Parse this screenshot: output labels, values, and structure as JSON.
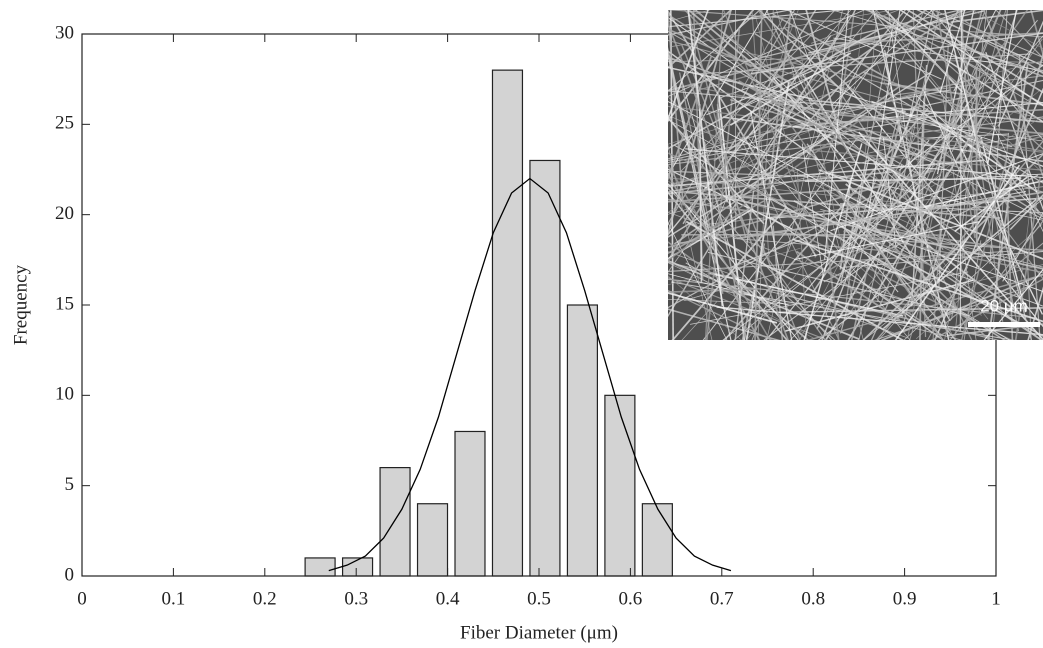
{
  "chart_data": {
    "type": "histogram",
    "x_label": "Fiber Diameter (μm)",
    "y_label": "Frequency",
    "bins": [
      0.24,
      0.281,
      0.322,
      0.363,
      0.404,
      0.445,
      0.486,
      0.527,
      0.568,
      0.609,
      0.65
    ],
    "values": [
      1,
      1,
      6,
      4,
      8,
      28,
      23,
      15,
      10,
      4
    ],
    "color": "#d3d3d3",
    "edge_color": "#222222",
    "fit": {
      "x": [
        0.27,
        0.29,
        0.31,
        0.33,
        0.35,
        0.37,
        0.39,
        0.41,
        0.43,
        0.45,
        0.47,
        0.49,
        0.51,
        0.53,
        0.55,
        0.57,
        0.59,
        0.61,
        0.63,
        0.65,
        0.67,
        0.69,
        0.71
      ],
      "values": [
        0.3,
        0.6,
        1.1,
        2.1,
        3.7,
        5.9,
        8.8,
        12.3,
        15.8,
        19.0,
        21.2,
        22,
        21.2,
        19.0,
        15.8,
        12.3,
        8.8,
        5.9,
        3.7,
        2.1,
        1.1,
        0.6,
        0.3
      ],
      "color": "#000000"
    },
    "xlim": [
      0,
      1
    ],
    "xticks": [
      0,
      0.1,
      0.2,
      0.3,
      0.4,
      0.5,
      0.6,
      0.7,
      0.8,
      0.9,
      1
    ],
    "ylim": [
      0,
      30
    ],
    "yticks": [
      0,
      5,
      10,
      15,
      20,
      25,
      30
    ],
    "grid": false,
    "inset": {
      "scale_bar_label": "20 μm"
    }
  }
}
